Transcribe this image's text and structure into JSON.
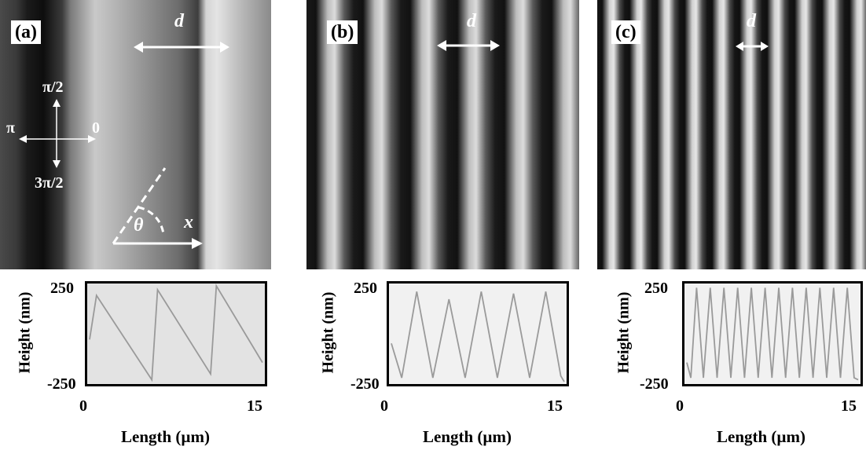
{
  "panels": [
    {
      "id": "a",
      "label": "(a)",
      "d_label": "d",
      "period_um": 5
    },
    {
      "id": "b",
      "label": "(b)",
      "d_label": "d",
      "period_um": 3
    },
    {
      "id": "c",
      "label": "(c)",
      "d_label": "d",
      "period_um": 1.5
    }
  ],
  "direction_legend": {
    "up": "π/2",
    "left": "π",
    "right": "0",
    "down": "3π/2"
  },
  "angle_labels": {
    "theta": "θ",
    "x": "x"
  },
  "chart_data": [
    {
      "type": "line",
      "panel": "a",
      "shape": "sawtooth",
      "xlabel": "Length (µm)",
      "ylabel": "Height (nm)",
      "xlim": [
        0,
        15
      ],
      "ylim": [
        -250,
        250
      ],
      "x_ticks": [
        "0",
        "15"
      ],
      "y_ticks": [
        "250",
        "-250"
      ],
      "series": [
        {
          "x": [
            0,
            0.6,
            5.4,
            5.9,
            10.5,
            11,
            15
          ],
          "y": [
            -30,
            200,
            -240,
            230,
            -210,
            250,
            -150
          ]
        }
      ]
    },
    {
      "type": "line",
      "panel": "b",
      "shape": "sinusoid",
      "xlabel": "Length (µm)",
      "ylabel": "Height (nm)",
      "xlim": [
        0,
        15
      ],
      "ylim": [
        -250,
        250
      ],
      "x_ticks": [
        "0",
        "15"
      ],
      "y_ticks": [
        "250",
        "-250"
      ],
      "series": [
        {
          "x": [
            0,
            0.9,
            2.2,
            3.6,
            5,
            6.4,
            7.8,
            9.2,
            10.6,
            12,
            13.4,
            14.7,
            15
          ],
          "y": [
            -50,
            -230,
            220,
            -230,
            180,
            -230,
            220,
            -230,
            210,
            -230,
            220,
            -220,
            -250
          ]
        }
      ]
    },
    {
      "type": "line",
      "panel": "c",
      "shape": "sinusoid",
      "xlabel": "Length (µm)",
      "ylabel": "Height (nm)",
      "xlim": [
        0,
        15
      ],
      "ylim": [
        -250,
        250
      ],
      "x_ticks": [
        "0",
        "15"
      ],
      "y_ticks": [
        "250",
        "-250"
      ],
      "series": [
        {
          "x": [
            0,
            0.35,
            0.85,
            1.45,
            2.05,
            2.65,
            3.25,
            3.85,
            4.45,
            5.05,
            5.65,
            6.25,
            6.85,
            7.45,
            8.05,
            8.65,
            9.25,
            9.85,
            10.45,
            11.05,
            11.65,
            12.25,
            12.85,
            13.45,
            14.05,
            14.65,
            15
          ],
          "y": [
            -150,
            -230,
            240,
            -230,
            240,
            -230,
            240,
            -230,
            240,
            -230,
            240,
            -230,
            240,
            -230,
            240,
            -230,
            240,
            -230,
            240,
            -230,
            240,
            -230,
            240,
            -230,
            240,
            -230,
            -240
          ]
        }
      ]
    }
  ]
}
